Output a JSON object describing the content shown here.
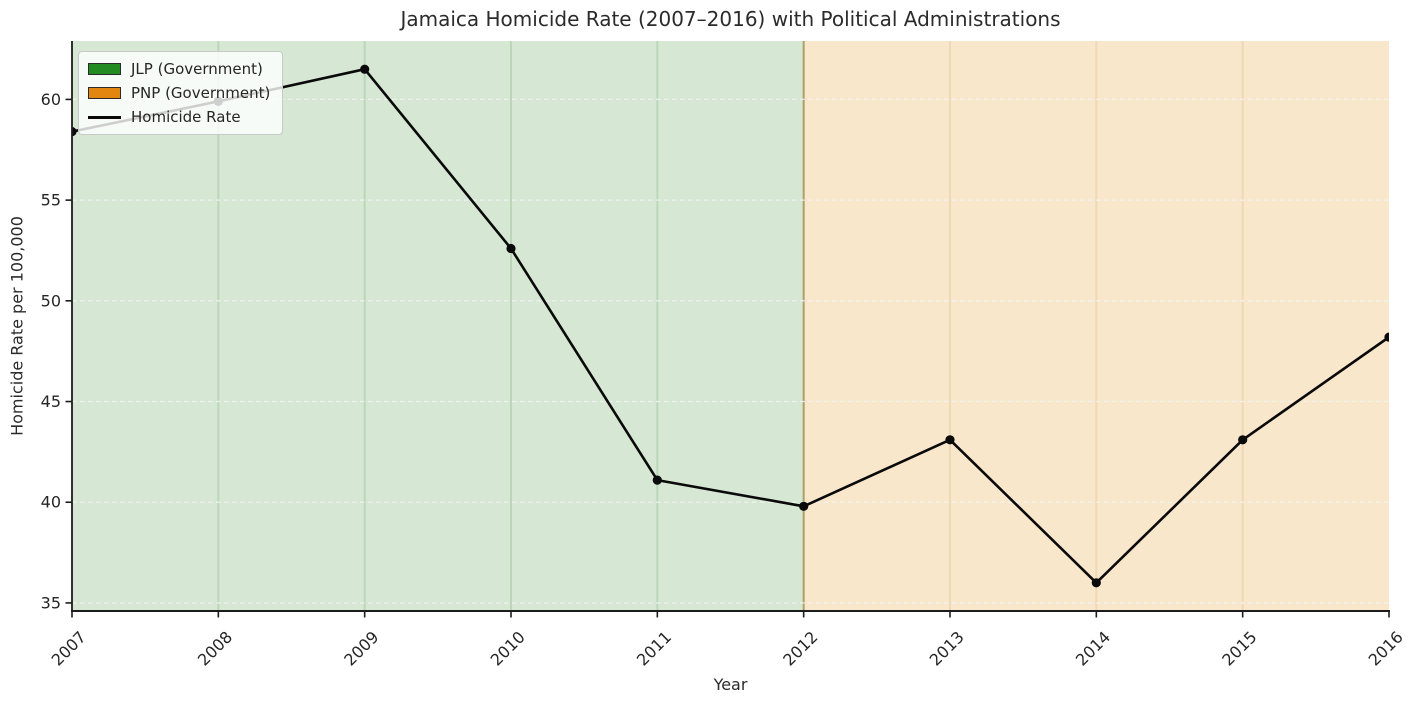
{
  "chart_data": {
    "type": "line",
    "title": "Jamaica Homicide Rate (2007–2016) with Political Administrations",
    "xlabel": "Year",
    "ylabel": "Homicide Rate per 100,000",
    "x": [
      2007,
      2008,
      2009,
      2010,
      2011,
      2012,
      2013,
      2014,
      2015,
      2016
    ],
    "series": [
      {
        "name": "Homicide Rate",
        "values": [
          58.4,
          59.9,
          61.5,
          52.6,
          41.1,
          39.8,
          43.1,
          36.0,
          43.1,
          48.2
        ],
        "color": "#0a0a0a",
        "marker": "circle"
      }
    ],
    "xlim": [
      2007,
      2016
    ],
    "ylim": [
      34.6,
      62.9
    ],
    "yticks": [
      35,
      40,
      45,
      50,
      55,
      60
    ],
    "xticks": [
      2007,
      2008,
      2009,
      2010,
      2011,
      2012,
      2013,
      2014,
      2015,
      2016
    ],
    "xtick_rotation": 45,
    "grid": {
      "horizontal": true,
      "style": "dashed",
      "color": "#f2f2f2"
    },
    "axis_color": "#1c1c1c",
    "tick_label_color": "#262626",
    "regions": [
      {
        "label": "JLP (Government)",
        "from": 2007,
        "to": 2012,
        "fill": "#d6e8d4",
        "edge": "#bcd6ba",
        "legend_color": "#228B22"
      },
      {
        "label": "PNP (Government)",
        "from": 2012,
        "to": 2016,
        "fill": "#f9e7cc",
        "edge": "#eed9b6",
        "legend_color": "#E2860F"
      }
    ],
    "boundary_overlap_color": "#ab9f6a",
    "legend": {
      "position": "upper-left",
      "items": [
        {
          "label": "JLP (Government)",
          "swatch": "patch",
          "color": "#228B22"
        },
        {
          "label": "PNP (Government)",
          "swatch": "patch",
          "color": "#E2860F"
        },
        {
          "label": "Homicide Rate",
          "swatch": "line",
          "color": "#0a0a0a"
        }
      ]
    }
  }
}
